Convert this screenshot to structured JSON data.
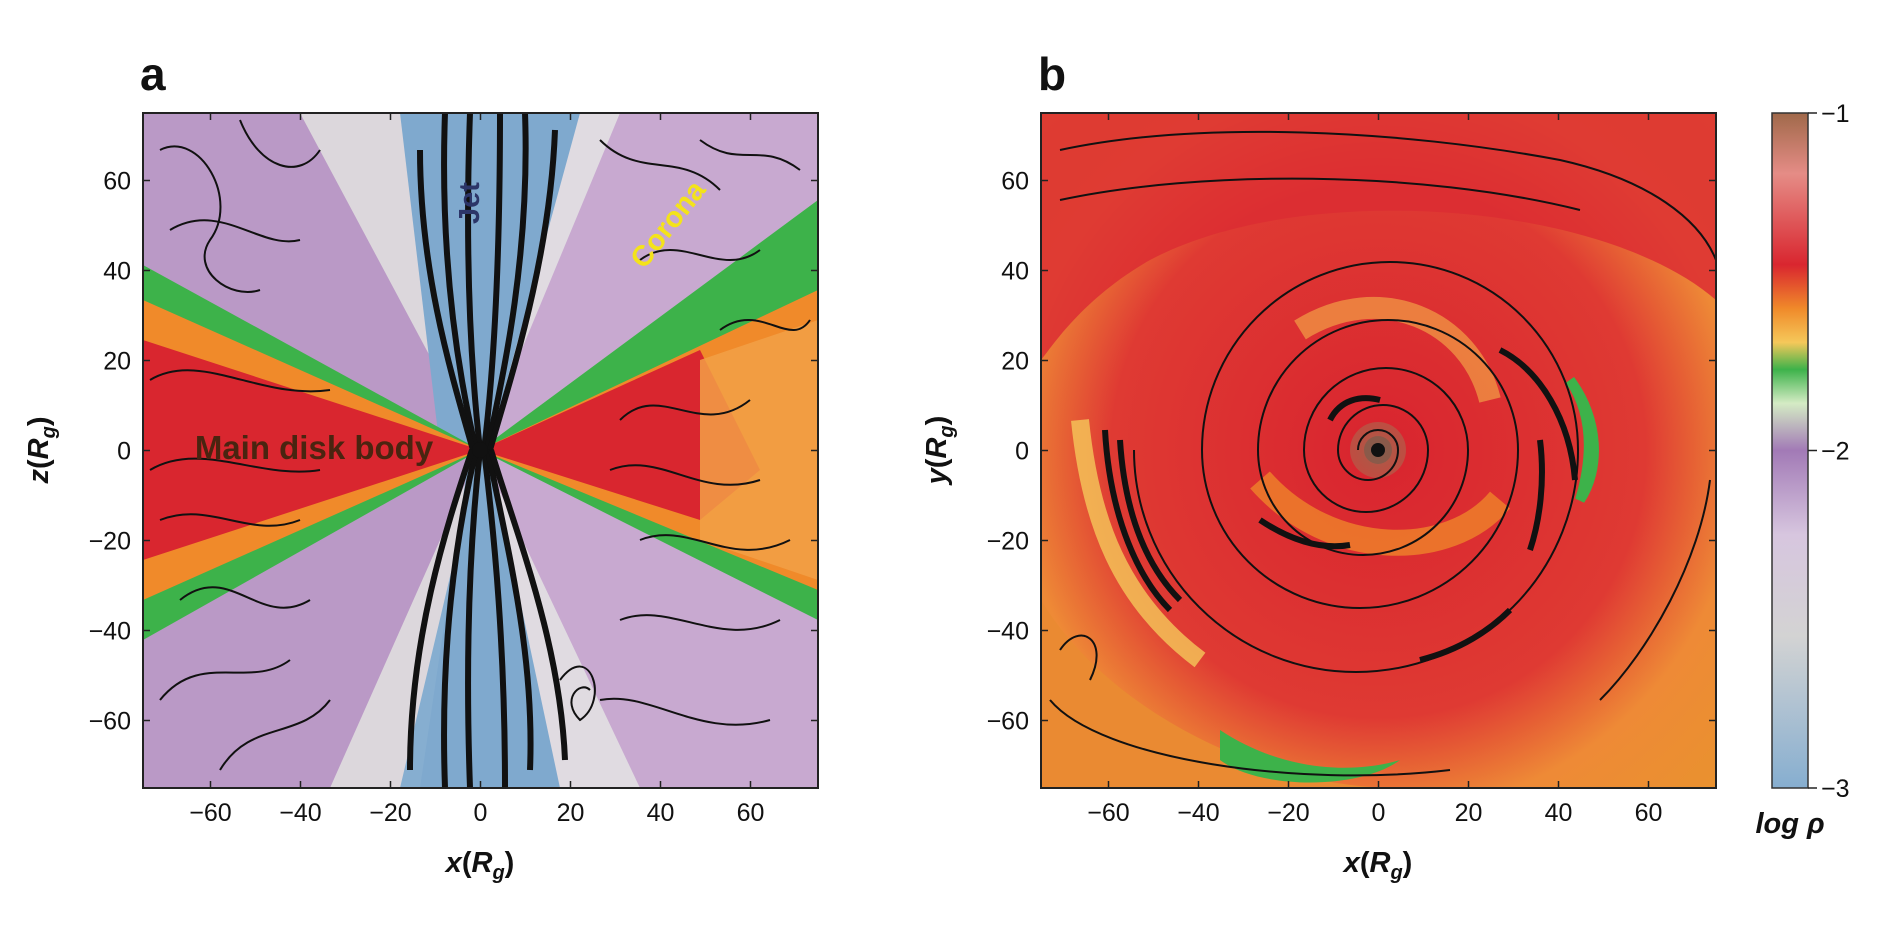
{
  "chart_data": [
    {
      "panel": "a",
      "type": "heatmap",
      "xlabel": {
        "main": "x",
        "open": "(",
        "sym": "R",
        "sub": "g",
        "close": ")"
      },
      "ylabel": {
        "main": "z",
        "open": "(",
        "sym": "R",
        "sub": "g",
        "close": ")"
      },
      "xlim": [
        -75,
        75
      ],
      "ylim": [
        -75,
        75
      ],
      "xticks": [
        -60,
        -40,
        -20,
        0,
        20,
        40,
        60
      ],
      "yticks": [
        -60,
        -40,
        -20,
        0,
        20,
        40,
        60
      ],
      "xtick_labels": [
        "−60",
        "−40",
        "−20",
        "0",
        "20",
        "40",
        "60"
      ],
      "ytick_labels": [
        "−60",
        "−40",
        "−20",
        "0",
        "20",
        "40",
        "60"
      ],
      "annotations": [
        {
          "text": "Main disk body",
          "x": -37,
          "y": 0,
          "color": "#4a2410",
          "rotate": 0
        },
        {
          "text": "Jet",
          "x": -2,
          "y": 55,
          "color": "#2c3568",
          "rotate": -90
        },
        {
          "text": "Corona",
          "x": 42,
          "y": 50,
          "color": "#f4e31a",
          "rotate": -52
        }
      ],
      "central_object": {
        "x": 0,
        "y": 0
      }
    },
    {
      "panel": "b",
      "type": "heatmap",
      "xlabel": {
        "main": "x",
        "open": "(",
        "sym": "R",
        "sub": "g",
        "close": ")"
      },
      "ylabel": {
        "main": "y",
        "open": "(",
        "sym": "R",
        "sub": "g",
        "close": ")"
      },
      "xlim": [
        -75,
        75
      ],
      "ylim": [
        -75,
        75
      ],
      "xticks": [
        -60,
        -40,
        -20,
        0,
        20,
        40,
        60
      ],
      "yticks": [
        -60,
        -40,
        -20,
        0,
        20,
        40,
        60
      ],
      "xtick_labels": [
        "−60",
        "−40",
        "−20",
        "0",
        "20",
        "40",
        "60"
      ],
      "ytick_labels": [
        "−60",
        "−40",
        "−20",
        "0",
        "20",
        "40",
        "60"
      ],
      "central_object": {
        "x": 0,
        "y": 0
      }
    }
  ],
  "colorbar": {
    "label_main": "log",
    "label_sym": "ρ",
    "ticks": [
      -1,
      -2,
      -3
    ],
    "tick_labels": [
      "−1",
      "−2",
      "−3"
    ],
    "range": [
      -3,
      -1
    ],
    "stops": [
      {
        "v": -1.0,
        "color": "#a0694a"
      },
      {
        "v": -1.18,
        "color": "#e58c86"
      },
      {
        "v": -1.45,
        "color": "#d9262f"
      },
      {
        "v": -1.58,
        "color": "#f08a2a"
      },
      {
        "v": -1.68,
        "color": "#f5c85a"
      },
      {
        "v": -1.76,
        "color": "#3db24a"
      },
      {
        "v": -1.86,
        "color": "#d4ebc4"
      },
      {
        "v": -2.0,
        "color": "#a27ab6"
      },
      {
        "v": -2.25,
        "color": "#d7c6df"
      },
      {
        "v": -2.55,
        "color": "#d3d3d3"
      },
      {
        "v": -3.0,
        "color": "#86aed0"
      }
    ]
  }
}
